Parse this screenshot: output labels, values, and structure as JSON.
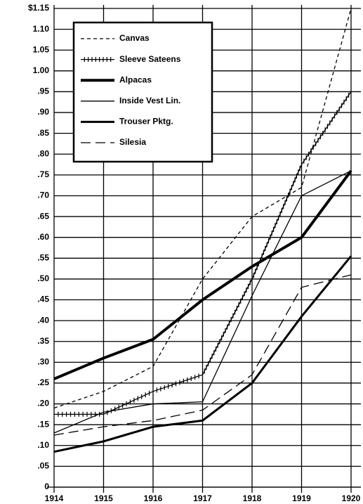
{
  "chart_data": {
    "type": "line",
    "categories": [
      "1914",
      "1915",
      "1916",
      "1917",
      "1918",
      "1919",
      "1920"
    ],
    "series": [
      {
        "name": "Canvas",
        "color": "#000",
        "dash": "5,4",
        "width": 1.3,
        "values": [
          0.19,
          0.23,
          0.29,
          0.5,
          0.65,
          0.72,
          1.15
        ]
      },
      {
        "name": "Sleeve Sateens",
        "color": "#000",
        "marker": "cross",
        "width": 1.3,
        "values": [
          0.175,
          0.175,
          0.23,
          0.27,
          0.5,
          0.775,
          0.95
        ]
      },
      {
        "name": "Alpacas",
        "color": "#000",
        "width": 4,
        "values": [
          0.26,
          0.31,
          0.355,
          0.45,
          0.53,
          0.6,
          0.76
        ]
      },
      {
        "name": "Inside Vest Lin.",
        "color": "#000",
        "width": 1.3,
        "values": [
          0.13,
          0.18,
          0.2,
          0.205,
          0.46,
          0.7,
          0.76
        ]
      },
      {
        "name": "Trouser Pktg.",
        "color": "#000",
        "width": 3,
        "values": [
          0.085,
          0.11,
          0.145,
          0.16,
          0.25,
          0.41,
          0.555
        ]
      },
      {
        "name": "Silesia",
        "color": "#000",
        "dash": "14,7",
        "width": 1.3,
        "values": [
          0.125,
          0.145,
          0.16,
          0.185,
          0.27,
          0.48,
          0.51
        ]
      }
    ],
    "ylim": [
      0,
      1.15
    ],
    "yticks": [
      0,
      {
        "value": 0.05,
        "label": ".05"
      },
      {
        "value": 0.1,
        "label": ".10"
      },
      {
        "value": 0.15,
        "label": ".15"
      },
      {
        "value": 0.2,
        "label": ".20"
      },
      {
        "value": 0.25,
        "label": ".25"
      },
      {
        "value": 0.3,
        "label": ".30"
      },
      {
        "value": 0.35,
        "label": ".35"
      },
      {
        "value": 0.4,
        "label": ".40"
      },
      {
        "value": 0.45,
        "label": ".45"
      },
      {
        "value": 0.5,
        "label": ".50"
      },
      {
        "value": 0.55,
        "label": ".55"
      },
      {
        "value": 0.6,
        "label": ".60"
      },
      {
        "value": 0.65,
        "label": ".65"
      },
      {
        "value": 0.7,
        "label": ".70"
      },
      {
        "value": 0.75,
        "label": ".75"
      },
      {
        "value": 0.8,
        "label": ".80"
      },
      {
        "value": 0.85,
        "label": ".85"
      },
      {
        "value": 0.9,
        "label": ".90"
      },
      {
        "value": 0.95,
        "label": ".95"
      },
      {
        "value": 1.0,
        "label": "1.00"
      },
      {
        "value": 1.05,
        "label": "1.05"
      },
      {
        "value": 1.1,
        "label": "1.10"
      },
      {
        "value": 1.15,
        "label": "$1.15"
      }
    ],
    "grid": true
  }
}
